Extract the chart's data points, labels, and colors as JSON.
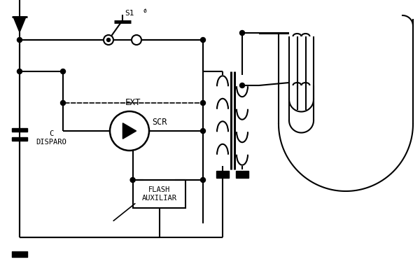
{
  "bg_color": "#ffffff",
  "line_color": "#000000",
  "text_color": "#000000",
  "figsize": [
    6.0,
    3.87
  ],
  "dpi": 100,
  "labels": {
    "s1": "S1",
    "ext": "EXT",
    "scr": "SCR",
    "c_disparo": "C\nDISPARO",
    "flash_auxiliar": "FLASH\nAUXILIAR"
  }
}
